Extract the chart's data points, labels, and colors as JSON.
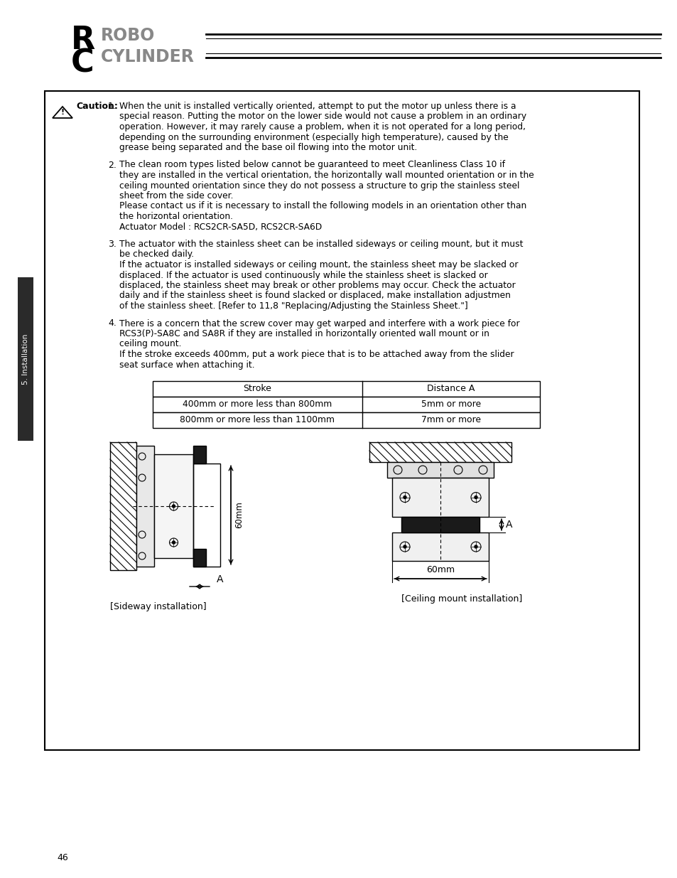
{
  "page_bg": "#ffffff",
  "header": {
    "logo_r_text": "R",
    "logo_c_text": "C",
    "logo_robo": "ROBO",
    "logo_cylinder": "CYLINDER"
  },
  "sidebar": {
    "text": "5. Installation"
  },
  "caution_label": "Caution:",
  "item1_lines": [
    "When the unit is installed vertically oriented, attempt to put the motor up unless there is a",
    "special reason. Putting the motor on the lower side would not cause a problem in an ordinary",
    "operation. However, it may rarely cause a problem, when it is not operated for a long period,",
    "depending on the surrounding environment (especially high temperature), caused by the",
    "grease being separated and the base oil flowing into the motor unit."
  ],
  "item2_lines": [
    "The clean room types listed below cannot be guaranteed to meet Cleanliness Class 10 if",
    "they are installed in the vertical orientation, the horizontally wall mounted orientation or in the",
    "ceiling mounted orientation since they do not possess a structure to grip the stainless steel",
    "sheet from the side cover.",
    "Please contact us if it is necessary to install the following models in an orientation other than",
    "the horizontal orientation.",
    "Actuator Model : RCS2CR-SA5D, RCS2CR-SA6D"
  ],
  "item3_lines": [
    "The actuator with the stainless sheet can be installed sideways or ceiling mount, but it must",
    "be checked daily.",
    "If the actuator is installed sideways or ceiling mount, the stainless sheet may be slacked or",
    "displaced. If the actuator is used continuously while the stainless sheet is slacked or",
    "displaced, the stainless sheet may break or other problems may occur. Check the actuator",
    "daily and if the stainless sheet is found slacked or displaced, make installation adjustmen",
    "of the stainless sheet. [Refer to 11,8 \"Replacing/Adjusting the Stainless Sheet.\"]"
  ],
  "item4_lines": [
    "There is a concern that the screw cover may get warped and interfere with a work piece for",
    "RCS3(P)-SA8C and SA8R if they are installed in horizontally oriented wall mount or in",
    "ceiling mount.",
    "If the stroke exceeds 400mm, put a work piece that is to be attached away from the slider",
    "seat surface when attaching it."
  ],
  "table_headers": [
    "Stroke",
    "Distance A"
  ],
  "table_rows": [
    [
      "400mm or more less than 800mm",
      "5mm or more"
    ],
    [
      "800mm or more less than 1100mm",
      "7mm or more"
    ]
  ],
  "page_number": "46",
  "diagram_left_label": "[Sideway installation]",
  "diagram_right_label": "[Ceiling mount installation]"
}
